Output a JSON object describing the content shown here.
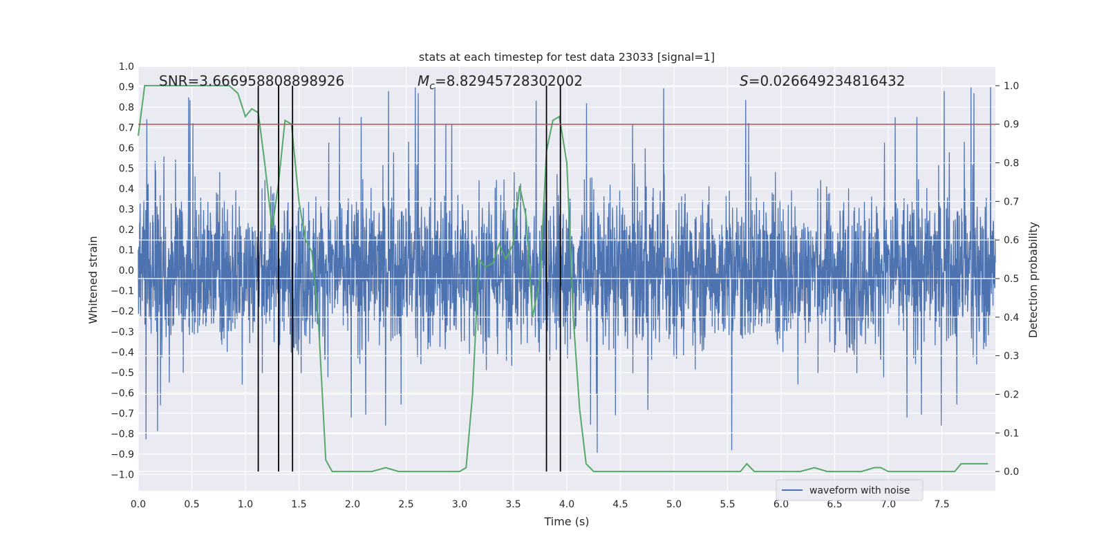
{
  "chart_data": {
    "type": "line",
    "title": "stats at each timestep for test data 23033 [signal=1]",
    "xlabel": "Time (s)",
    "ylabel_left": "Whitened strain",
    "ylabel_right": "Detection probability",
    "xlim": [
      0,
      8
    ],
    "ylim_left": [
      -1.08,
      1.0
    ],
    "ylim_right": [
      -0.05,
      1.05
    ],
    "x_ticks": [
      0.0,
      0.5,
      1.0,
      1.5,
      2.0,
      2.5,
      3.0,
      3.5,
      4.0,
      4.5,
      5.0,
      5.5,
      6.0,
      6.5,
      7.0,
      7.5
    ],
    "x_tick_labels": [
      "0.0",
      "0.5",
      "1.0",
      "1.5",
      "2.0",
      "2.5",
      "3.0",
      "3.5",
      "4.0",
      "4.5",
      "5.0",
      "5.5",
      "6.0",
      "6.5",
      "7.0",
      "7.5"
    ],
    "y_left_ticks": [
      -1.0,
      -0.9,
      -0.8,
      -0.7,
      -0.6,
      -0.5,
      -0.4,
      -0.3,
      -0.2,
      -0.1,
      0.0,
      0.1,
      0.2,
      0.3,
      0.4,
      0.5,
      0.6,
      0.7,
      0.8,
      0.9,
      1.0
    ],
    "y_left_tick_labels": [
      "−1.0",
      "−0.9",
      "−0.8",
      "−0.7",
      "−0.6",
      "−0.5",
      "−0.4",
      "−0.3",
      "−0.2",
      "−0.1",
      "0.0",
      "0.1",
      "0.2",
      "0.3",
      "0.4",
      "0.5",
      "0.6",
      "0.7",
      "0.8",
      "0.9",
      "1.0"
    ],
    "y_right_ticks": [
      0.0,
      0.1,
      0.2,
      0.3,
      0.4,
      0.5,
      0.6,
      0.7,
      0.8,
      0.9,
      1.0
    ],
    "y_right_tick_labels": [
      "0.0",
      "0.1",
      "0.2",
      "0.3",
      "0.4",
      "0.5",
      "0.6",
      "0.7",
      "0.8",
      "0.9",
      "1.0"
    ],
    "grid": true,
    "annotations": {
      "snr": "SNR=3.666958808898926",
      "mc_prefix": "M",
      "mc_sub": "c",
      "mc_value": "=8.82945728302002",
      "s_prefix": "S",
      "s_value": "=0.026649234816432"
    },
    "legend": {
      "placement": "lower-right",
      "entries": [
        "waveform with noise"
      ]
    },
    "series": [
      {
        "name": "waveform with noise",
        "color": "#4c72b0",
        "axis": "left",
        "style": "noise",
        "envelope": {
          "typical_abs": 0.33,
          "peak_abs": 0.92,
          "min": -1.0
        }
      },
      {
        "color": "#55a868",
        "axis": "right",
        "x": [
          0.0,
          0.06,
          0.12,
          0.3,
          0.5,
          0.7,
          0.85,
          0.93,
          1.0,
          1.06,
          1.12,
          1.18,
          1.25,
          1.31,
          1.37,
          1.43,
          1.5,
          1.56,
          1.62,
          1.68,
          1.75,
          1.81,
          1.87,
          2.0,
          2.18,
          2.31,
          2.43,
          2.56,
          2.75,
          2.93,
          3.0,
          3.06,
          3.12,
          3.18,
          3.24,
          3.31,
          3.37,
          3.43,
          3.5,
          3.56,
          3.62,
          3.68,
          3.75,
          3.81,
          3.87,
          3.93,
          4.0,
          4.06,
          4.12,
          4.18,
          4.25,
          4.5,
          4.75,
          5.0,
          5.25,
          5.5,
          5.62,
          5.68,
          5.75,
          5.81,
          6.0,
          6.18,
          6.31,
          6.43,
          6.56,
          6.75,
          6.87,
          6.93,
          7.0,
          7.18,
          7.31,
          7.5,
          7.62,
          7.68,
          7.75,
          7.81,
          7.87,
          7.93
        ],
        "y": [
          0.87,
          1.0,
          1.0,
          1.0,
          1.0,
          1.0,
          1.0,
          0.98,
          0.92,
          0.94,
          0.93,
          0.8,
          0.63,
          0.75,
          0.91,
          0.9,
          0.7,
          0.6,
          0.57,
          0.4,
          0.03,
          0.0,
          0.0,
          0.0,
          0.0,
          0.01,
          0.0,
          0.0,
          0.0,
          0.0,
          0.0,
          0.01,
          0.2,
          0.55,
          0.53,
          0.54,
          0.59,
          0.55,
          0.59,
          0.74,
          0.66,
          0.4,
          0.5,
          0.83,
          0.91,
          0.92,
          0.8,
          0.4,
          0.16,
          0.02,
          0.0,
          0.0,
          0.0,
          0.0,
          0.0,
          0.0,
          0.0,
          0.02,
          0.0,
          0.0,
          0.0,
          0.0,
          0.01,
          0.0,
          0.0,
          0.0,
          0.01,
          0.01,
          0.0,
          0.0,
          0.0,
          0.0,
          0.0,
          0.02,
          0.02,
          0.02,
          0.02,
          0.02
        ]
      }
    ],
    "threshold": {
      "axis": "right",
      "value": 0.9,
      "color": "#c44e52"
    },
    "vertical_markers": {
      "x": [
        1.12,
        1.31,
        1.44,
        3.81,
        3.94
      ],
      "color": "#000000"
    }
  }
}
